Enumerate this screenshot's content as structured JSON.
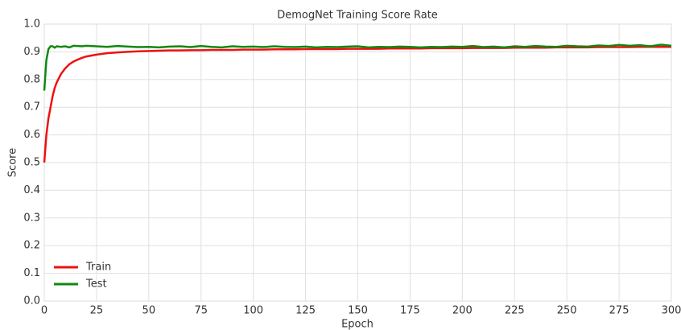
{
  "chart_data": {
    "type": "line",
    "title": "DemogNet Training Score Rate",
    "x_label": "Epoch",
    "y_label": "Score",
    "x": [
      0,
      1,
      2,
      3,
      4,
      5,
      6,
      8,
      10,
      12,
      14,
      16,
      18,
      20,
      25,
      30,
      35,
      40,
      45,
      50,
      55,
      60,
      65,
      70,
      75,
      80,
      85,
      90,
      95,
      100,
      105,
      110,
      115,
      120,
      125,
      130,
      135,
      140,
      145,
      150,
      155,
      160,
      165,
      170,
      175,
      180,
      185,
      190,
      195,
      200,
      205,
      210,
      215,
      220,
      225,
      230,
      235,
      240,
      245,
      250,
      255,
      260,
      265,
      270,
      275,
      280,
      285,
      290,
      295,
      300
    ],
    "series": [
      {
        "name": "Train",
        "color": "#ee1111",
        "values": [
          0.5,
          0.6,
          0.66,
          0.7,
          0.74,
          0.77,
          0.79,
          0.82,
          0.84,
          0.855,
          0.865,
          0.872,
          0.878,
          0.883,
          0.89,
          0.895,
          0.898,
          0.9,
          0.902,
          0.903,
          0.904,
          0.905,
          0.905,
          0.906,
          0.906,
          0.907,
          0.907,
          0.907,
          0.908,
          0.908,
          0.908,
          0.909,
          0.909,
          0.909,
          0.91,
          0.91,
          0.91,
          0.91,
          0.911,
          0.911,
          0.911,
          0.911,
          0.912,
          0.912,
          0.912,
          0.912,
          0.913,
          0.913,
          0.913,
          0.913,
          0.914,
          0.914,
          0.914,
          0.914,
          0.915,
          0.915,
          0.915,
          0.915,
          0.916,
          0.916,
          0.916,
          0.916,
          0.917,
          0.917,
          0.917,
          0.917,
          0.918,
          0.918,
          0.918,
          0.918
        ]
      },
      {
        "name": "Test",
        "color": "#118811",
        "values": [
          0.76,
          0.87,
          0.91,
          0.92,
          0.92,
          0.915,
          0.92,
          0.918,
          0.92,
          0.916,
          0.922,
          0.921,
          0.92,
          0.922,
          0.92,
          0.918,
          0.921,
          0.919,
          0.917,
          0.918,
          0.916,
          0.919,
          0.92,
          0.917,
          0.921,
          0.918,
          0.916,
          0.92,
          0.918,
          0.919,
          0.917,
          0.92,
          0.918,
          0.917,
          0.919,
          0.916,
          0.918,
          0.917,
          0.919,
          0.92,
          0.916,
          0.918,
          0.917,
          0.919,
          0.918,
          0.916,
          0.918,
          0.917,
          0.919,
          0.918,
          0.921,
          0.917,
          0.919,
          0.916,
          0.92,
          0.918,
          0.921,
          0.919,
          0.918,
          0.922,
          0.92,
          0.919,
          0.923,
          0.921,
          0.925,
          0.922,
          0.924,
          0.92,
          0.926,
          0.922
        ]
      }
    ],
    "xlim": [
      0,
      300
    ],
    "xticks": [
      0,
      25,
      50,
      75,
      100,
      125,
      150,
      175,
      200,
      225,
      250,
      275,
      300
    ],
    "ylim": [
      0,
      1
    ],
    "yticks": [
      {
        "value": 0,
        "label": "0.0"
      },
      0.1,
      0.2,
      0.3,
      0.4,
      0.5,
      0.6,
      0.7,
      0.8,
      0.9,
      {
        "value": 1,
        "label": "1.0"
      }
    ],
    "grid": true,
    "legend": "lower left"
  }
}
